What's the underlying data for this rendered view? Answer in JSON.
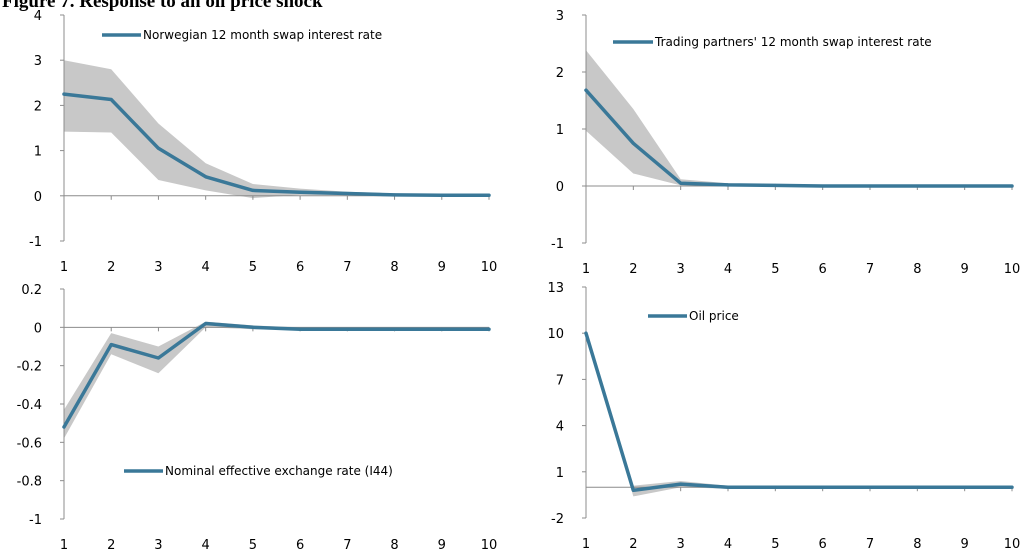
{
  "figure": {
    "title": "Figure 7. Response to an oil price shock"
  },
  "chart_data": [
    {
      "type": "line",
      "series": [
        {
          "name": "Norwegian 12 month swap interest rate",
          "color": "#3a7898"
        }
      ],
      "x": [
        1,
        2,
        3,
        4,
        5,
        6,
        7,
        8,
        9,
        10
      ],
      "values": [
        2.25,
        2.13,
        1.05,
        0.42,
        0.12,
        0.08,
        0.05,
        0.02,
        0.01,
        0.01
      ],
      "band_upper": [
        3.0,
        2.8,
        1.6,
        0.72,
        0.26,
        0.16,
        0.09,
        0.05,
        0.03,
        0.02
      ],
      "band_lower": [
        1.42,
        1.4,
        0.35,
        0.12,
        -0.05,
        0.02,
        0.01,
        0.0,
        0.0,
        0.0
      ],
      "band_color": "#c8c8c8",
      "yticks": [
        4,
        3,
        2,
        1,
        0,
        -1
      ],
      "ylim": [
        -1,
        4
      ],
      "xticks": [
        "1",
        "2",
        "3",
        "4",
        "5",
        "6",
        "7",
        "8",
        "9",
        "10"
      ],
      "legend": "top-left",
      "grid": false
    },
    {
      "type": "line",
      "series": [
        {
          "name": "Trading partners' 12 month swap interest rate",
          "color": "#3a7898"
        }
      ],
      "x": [
        1,
        2,
        3,
        4,
        5,
        6,
        7,
        8,
        9,
        10
      ],
      "values": [
        1.68,
        0.75,
        0.05,
        0.02,
        0.01,
        0.0,
        0.0,
        0.0,
        0.0,
        0.0
      ],
      "band_upper": [
        2.38,
        1.35,
        0.12,
        0.05,
        0.02,
        0.01,
        0.0,
        0.0,
        0.0,
        0.0
      ],
      "band_lower": [
        0.97,
        0.22,
        0.01,
        0.0,
        0.0,
        0.0,
        0.0,
        0.0,
        0.0,
        0.0
      ],
      "band_color": "#c8c8c8",
      "yticks": [
        3,
        2,
        1,
        0,
        -1
      ],
      "ylim": [
        -1,
        3
      ],
      "xticks": [
        "1",
        "2",
        "3",
        "4",
        "5",
        "6",
        "7",
        "8",
        "9",
        "10"
      ],
      "legend": "top",
      "grid": false
    },
    {
      "type": "line",
      "series": [
        {
          "name": "Nominal effective exchange rate (I44)",
          "color": "#3a7898"
        }
      ],
      "x": [
        1,
        2,
        3,
        4,
        5,
        6,
        7,
        8,
        9,
        10
      ],
      "values": [
        -0.52,
        -0.09,
        -0.16,
        0.02,
        0.0,
        -0.01,
        -0.01,
        -0.01,
        -0.01,
        -0.01
      ],
      "band_upper": [
        -0.43,
        -0.03,
        -0.1,
        0.03,
        0.01,
        0.0,
        0.0,
        0.0,
        0.0,
        0.0
      ],
      "band_lower": [
        -0.58,
        -0.14,
        -0.24,
        0.0,
        -0.01,
        -0.01,
        -0.01,
        -0.01,
        -0.01,
        -0.01
      ],
      "band_color": "#c8c8c8",
      "yticks": [
        "0.2",
        "0",
        "-0.2",
        "-0.4",
        "-0.6",
        "-0.8",
        "-1"
      ],
      "ylim": [
        -1,
        0.2
      ],
      "xticks": [
        "1",
        "2",
        "3",
        "4",
        "5",
        "6",
        "7",
        "8",
        "9",
        "10"
      ],
      "legend": "bottom",
      "grid": false
    },
    {
      "type": "line",
      "series": [
        {
          "name": "Oil price",
          "color": "#3a7898"
        }
      ],
      "x": [
        1,
        2,
        3,
        4,
        5,
        6,
        7,
        8,
        9,
        10
      ],
      "values": [
        10.0,
        -0.2,
        0.2,
        0.0,
        0.0,
        0.0,
        0.0,
        0.0,
        0.0,
        0.0
      ],
      "band_upper": [
        10.0,
        0.1,
        0.4,
        0.1,
        0.05,
        0.05,
        0.05,
        0.05,
        0.05,
        0.05
      ],
      "band_lower": [
        10.0,
        -0.6,
        0.0,
        -0.1,
        -0.05,
        -0.05,
        -0.05,
        -0.05,
        -0.05,
        -0.05
      ],
      "band_color": "#c8c8c8",
      "yticks": [
        13,
        10,
        7,
        4,
        1,
        -2
      ],
      "ylim": [
        -2,
        13
      ],
      "xticks": [
        "1",
        "2",
        "3",
        "4",
        "5",
        "6",
        "7",
        "8",
        "9",
        "10"
      ],
      "legend": "top-left",
      "grid": false
    }
  ]
}
